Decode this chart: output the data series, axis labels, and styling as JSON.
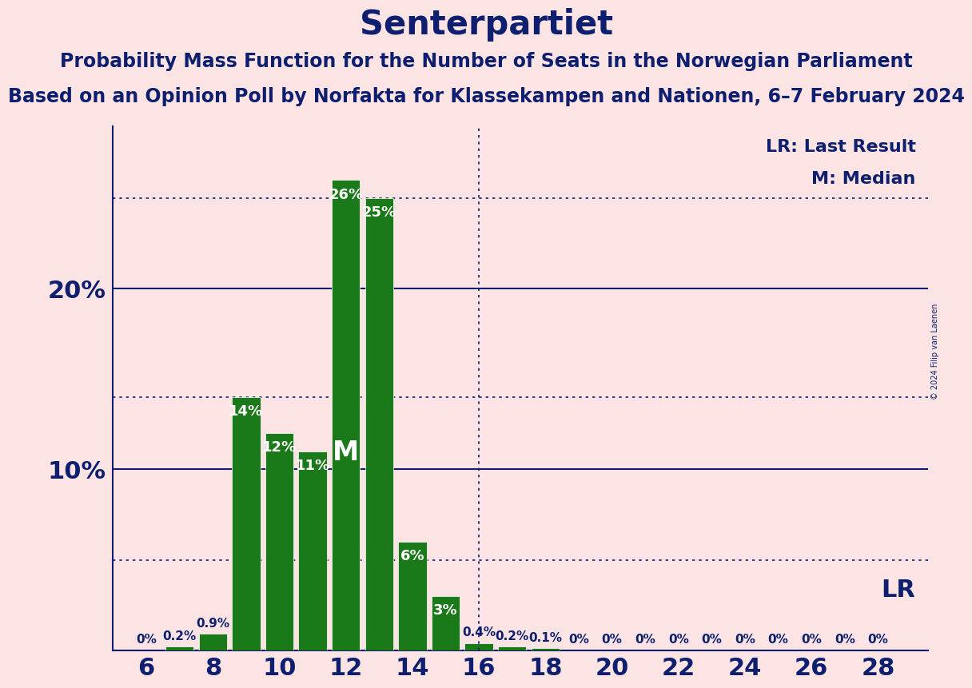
{
  "title": "Senterpartiet",
  "subtitle1": "Probability Mass Function for the Number of Seats in the Norwegian Parliament",
  "subtitle2": "Based on an Opinion Poll by Norfakta for Klassekampen and Nationen, 6–7 February 2024",
  "copyright": "© 2024 Filip van Laenen",
  "seats": [
    6,
    7,
    8,
    9,
    10,
    11,
    12,
    13,
    14,
    15,
    16,
    17,
    18,
    19,
    20,
    21,
    22,
    23,
    24,
    25,
    26,
    27,
    28
  ],
  "probabilities": [
    0.0,
    0.2,
    0.9,
    14.0,
    12.0,
    11.0,
    26.0,
    25.0,
    6.0,
    3.0,
    0.4,
    0.2,
    0.1,
    0.0,
    0.0,
    0.0,
    0.0,
    0.0,
    0.0,
    0.0,
    0.0,
    0.0,
    0.0
  ],
  "bar_color": "#1a7a1a",
  "bar_edge_color": "#ffffff",
  "background_color": "#fce4e4",
  "text_color": "#0d1f6e",
  "median_seat": 12,
  "last_result_seat": 16,
  "median_label": "M",
  "lr_label": "LR",
  "legend_lr": "LR: Last Result",
  "legend_m": "M: Median",
  "dotted_line_color": "#0d1f6e",
  "solid_line_color": "#0d1f6e",
  "ylim": [
    0,
    29
  ],
  "xlim_left": 5.0,
  "xlim_right": 29.5,
  "xtick_positions": [
    6,
    8,
    10,
    12,
    14,
    16,
    18,
    20,
    22,
    24,
    26,
    28
  ],
  "solid_gridlines": [
    10,
    20
  ],
  "dotted_gridlines": [
    5,
    14,
    25
  ],
  "title_fontsize": 30,
  "subtitle_fontsize": 17,
  "legend_fontsize": 16,
  "bar_label_fontsize": 13,
  "axis_tick_fontsize": 22,
  "ytick_fontsize": 22,
  "lr_label_fontsize": 22,
  "bar_width": 0.85
}
